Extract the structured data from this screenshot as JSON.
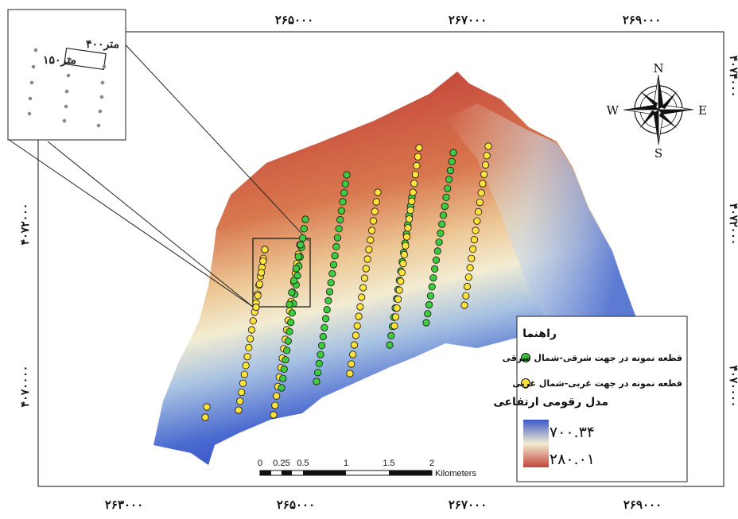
{
  "grid_labels": {
    "top": [
      "۲۶۵۰۰۰",
      "۲۶۷۰۰۰",
      "۲۶۹۰۰۰"
    ],
    "bottom": [
      "۲۶۳۰۰۰",
      "۲۶۵۰۰۰",
      "۲۶۷۰۰۰",
      "۲۶۹۰۰۰"
    ],
    "left": [
      "۴۰۷۲۰۰۰",
      "۴۰۷۰۰۰۰"
    ],
    "right": [
      "۴۰۷۴۰۰۰",
      "۴۰۷۲۰۰۰",
      "۴۰۷۰۰۰۰"
    ]
  },
  "compass": {
    "n": "N",
    "s": "S",
    "e": "E",
    "w": "W"
  },
  "inset": {
    "label_400": "۴۰۰متر",
    "label_150": "۱۵۰متر"
  },
  "legend": {
    "title": "راهنما",
    "east_north_east": "قطعه نمونه در جهت شرقی-شمال شرقی",
    "west_north_west": "قطعه نمونه در جهت غربی-شمال غربی",
    "dem_title": "مدل رقومی ارتفاعی",
    "max_value": "۷۰۰.۳۴",
    "min_value": "۲۸۰.۰۱"
  },
  "scale_bar": {
    "ticks": [
      "0",
      "0.25",
      "0.5",
      "1",
      "1.5",
      "2"
    ],
    "unit": "Kilometers"
  },
  "colors": {
    "high": "#c4453a",
    "mid": "#f1e9c9",
    "low": "#3e5fc9",
    "green_plot": "#3fcb3f",
    "yellow_plot": "#ffe23a"
  }
}
